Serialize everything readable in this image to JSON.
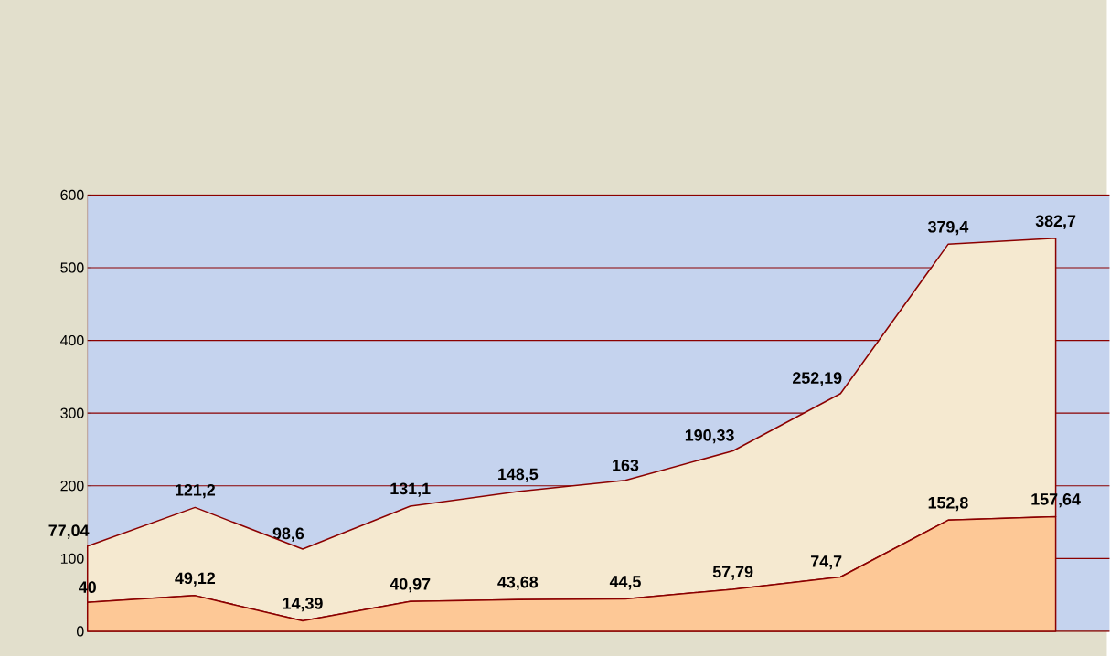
{
  "chart_data": {
    "type": "area",
    "stacked": true,
    "categories": [
      null,
      null,
      null,
      null,
      null,
      null,
      null,
      null,
      null,
      null
    ],
    "series": [
      {
        "color": "#fdc896",
        "values": [
          40,
          49.12,
          14.39,
          40.97,
          43.68,
          44.5,
          57.79,
          74.7,
          152.8,
          157.64
        ],
        "value_labels": [
          "40",
          "49,12",
          "14,39",
          "40,97",
          "43,68",
          "44,5",
          "57,79",
          "74,7",
          "152,8",
          "157,64"
        ]
      },
      {
        "color": "#f5e9d0",
        "values": [
          77.04,
          121.2,
          98.6,
          131.1,
          148.5,
          163,
          190.33,
          252.19,
          379.4,
          382.7
        ],
        "value_labels": [
          "77,04",
          "121,2",
          "98,6",
          "131,1",
          "148,5",
          "163",
          "190,33",
          "252,19",
          "379,4",
          "382,7"
        ]
      }
    ],
    "ylim": [
      0,
      600
    ],
    "yticks": [
      0,
      100,
      200,
      300,
      400,
      500,
      600
    ],
    "grid": "y",
    "tick_labels": "y"
  }
}
